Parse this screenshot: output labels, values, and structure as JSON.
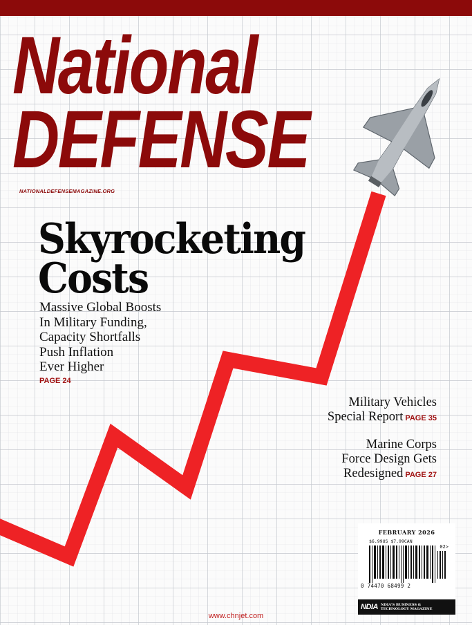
{
  "masthead": {
    "line1": "National",
    "line2": "DEFENSE",
    "website": "NATIONALDEFENSEMAGAZINE.ORG"
  },
  "cover_story": {
    "headline_line1": "Skyrocketing",
    "headline_line2": "Costs",
    "deck": [
      "Massive Global Boosts",
      "In Military Funding,",
      "Capacity Shortfalls",
      "Push Inflation",
      "Ever Higher"
    ],
    "page_ref": "PAGE 24"
  },
  "secondary_stories": [
    {
      "lines": [
        "Military Vehicles",
        "Special Report"
      ],
      "page_ref": "PAGE 35"
    },
    {
      "lines": [
        "Marine Corps",
        "Force Design Gets",
        "Redesigned"
      ],
      "page_ref": "PAGE 27"
    }
  ],
  "barcode_box": {
    "issue_date": "FEBRUARY 2026",
    "price": "$6.99US $7.99CAN",
    "addon": "02>",
    "upc_digits": "0   74470 68499   2",
    "publisher_logo": "NDIA",
    "publisher_tagline": [
      "NDIA'S BUSINESS &",
      "TECHNOLOGY MAGAZINE"
    ]
  },
  "watermark": "www.chnjet.com",
  "colors": {
    "brand_red": "#8c0a0a",
    "arrow_red": "#ee2225",
    "grid": "#cfd3d8"
  },
  "illustration": {
    "icon": "fighter-jet-icon"
  }
}
